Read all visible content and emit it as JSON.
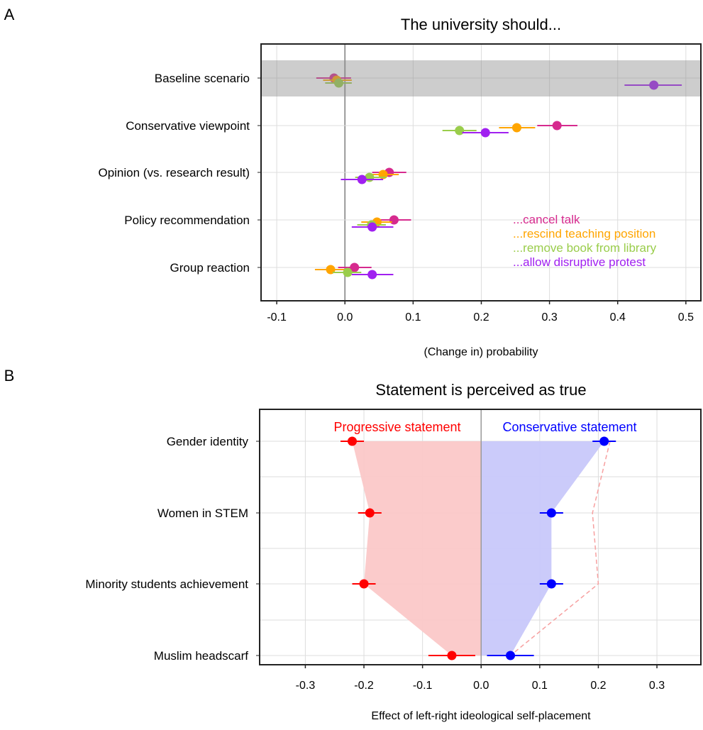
{
  "chart_data": [
    {
      "panel_label": "A",
      "type": "scatter",
      "title": "The university should...",
      "xlabel": "(Change in) probability",
      "ylabel": "",
      "xlim": [
        -0.123,
        0.522
      ],
      "xticks": [
        -0.1,
        0.0,
        0.1,
        0.2,
        0.3,
        0.4,
        0.5
      ],
      "xtick_labels": [
        "-0.1",
        "0.0",
        "0.1",
        "0.2",
        "0.3",
        "0.4",
        "0.5"
      ],
      "grid": true,
      "highlighted_category": "Baseline scenario",
      "categories": [
        "Baseline scenario",
        "Conservative viewpoint",
        "Opinion (vs. research result)",
        "Policy recommendation",
        "Group reaction"
      ],
      "legend_placement": "bottom-right",
      "series": [
        {
          "name": "...cancel talk",
          "color": "#d62a8e",
          "values": [
            -0.016,
            0.311,
            0.065,
            0.072,
            0.014
          ],
          "ci_low": [
            -0.042,
            0.282,
            0.04,
            0.046,
            -0.01
          ],
          "ci_high": [
            0.009,
            0.341,
            0.09,
            0.097,
            0.039
          ]
        },
        {
          "name": "...rescind teaching position",
          "color": "#ffa500",
          "values": [
            -0.012,
            0.252,
            0.056,
            0.047,
            -0.021
          ],
          "ci_low": [
            -0.032,
            0.226,
            0.032,
            0.024,
            -0.044
          ],
          "ci_high": [
            0.01,
            0.279,
            0.079,
            0.069,
            0.001
          ]
        },
        {
          "name": "...remove book from library",
          "color": "#9acd4b",
          "values": [
            -0.009,
            0.168,
            0.036,
            0.039,
            0.004
          ],
          "ci_low": [
            -0.029,
            0.143,
            0.015,
            0.018,
            -0.018
          ],
          "ci_high": [
            0.01,
            0.193,
            0.061,
            0.06,
            0.024
          ]
        },
        {
          "name": "...allow disruptive protest",
          "color": "#a020f0",
          "values": [
            0.453,
            0.206,
            0.025,
            0.04,
            0.04
          ],
          "ci_low": [
            0.41,
            0.172,
            -0.006,
            0.01,
            0.01
          ],
          "ci_high": [
            0.494,
            0.24,
            0.056,
            0.071,
            0.071
          ]
        }
      ]
    },
    {
      "panel_label": "B",
      "type": "scatter",
      "title": "Statement is perceived as true",
      "xlabel": "Effect of left-right ideological self-placement",
      "ylabel": "",
      "xlim": [
        -0.378,
        0.375
      ],
      "xticks": [
        -0.3,
        -0.2,
        -0.1,
        0.0,
        0.1,
        0.2,
        0.3
      ],
      "xtick_labels": [
        "-0.3",
        "-0.2",
        "-0.1",
        "0.0",
        "0.1",
        "0.2",
        "0.3"
      ],
      "grid": true,
      "categories": [
        "Gender identity",
        "Women in STEM",
        "Minority students achievement",
        "Muslim headscarf"
      ],
      "legend_placement": "top",
      "mirrored_reference": "dashed pink line mirrors progressive effects onto positive side",
      "series": [
        {
          "name": "Progressive statement",
          "color": "#ff0000",
          "fill": "#fbc8c8",
          "values": [
            -0.22,
            -0.19,
            -0.2,
            -0.05
          ],
          "ci_low": [
            -0.24,
            -0.21,
            -0.22,
            -0.09
          ],
          "ci_high": [
            -0.2,
            -0.17,
            -0.18,
            -0.01
          ]
        },
        {
          "name": "Conservative statement",
          "color": "#0000ff",
          "fill": "#c8c8fa",
          "values": [
            0.21,
            0.12,
            0.12,
            0.05
          ],
          "ci_low": [
            0.19,
            0.1,
            0.1,
            0.01
          ],
          "ci_high": [
            0.23,
            0.14,
            0.14,
            0.09
          ]
        }
      ]
    }
  ]
}
